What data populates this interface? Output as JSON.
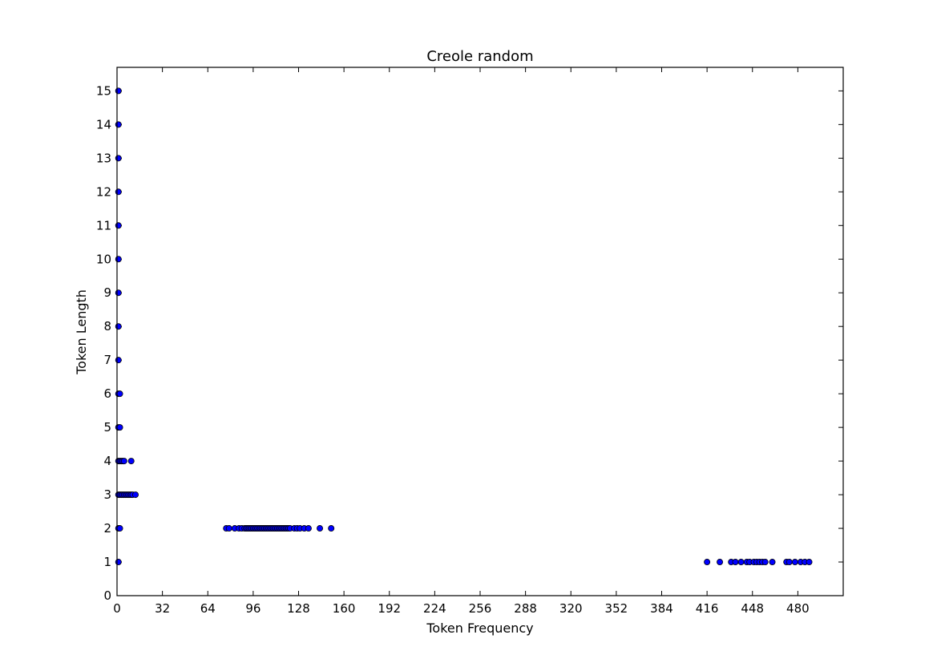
{
  "chart_data": {
    "type": "scatter",
    "title": "Creole random",
    "xlabel": "Token Frequency",
    "ylabel": "Token Length",
    "xlim": [
      0,
      512
    ],
    "ylim": [
      0,
      15.7
    ],
    "xticks": [
      0,
      32,
      64,
      96,
      128,
      160,
      192,
      224,
      256,
      288,
      320,
      352,
      384,
      416,
      448,
      480
    ],
    "yticks": [
      0,
      1,
      2,
      3,
      4,
      5,
      6,
      7,
      8,
      9,
      10,
      11,
      12,
      13,
      14,
      15
    ],
    "grid": false,
    "marker_color": "#0000ff",
    "points": [
      {
        "x": 1,
        "y": 15
      },
      {
        "x": 1,
        "y": 14
      },
      {
        "x": 1,
        "y": 13
      },
      {
        "x": 1,
        "y": 12
      },
      {
        "x": 1,
        "y": 11
      },
      {
        "x": 1,
        "y": 10
      },
      {
        "x": 1,
        "y": 9
      },
      {
        "x": 1,
        "y": 8
      },
      {
        "x": 1,
        "y": 7
      },
      {
        "x": 1,
        "y": 6
      },
      {
        "x": 2,
        "y": 6
      },
      {
        "x": 1,
        "y": 5
      },
      {
        "x": 2,
        "y": 5
      },
      {
        "x": 1,
        "y": 4
      },
      {
        "x": 2,
        "y": 4
      },
      {
        "x": 3,
        "y": 4
      },
      {
        "x": 4,
        "y": 4
      },
      {
        "x": 5,
        "y": 4
      },
      {
        "x": 10,
        "y": 4
      },
      {
        "x": 1,
        "y": 3
      },
      {
        "x": 2,
        "y": 3
      },
      {
        "x": 3,
        "y": 3
      },
      {
        "x": 4,
        "y": 3
      },
      {
        "x": 5,
        "y": 3
      },
      {
        "x": 6,
        "y": 3
      },
      {
        "x": 7,
        "y": 3
      },
      {
        "x": 8,
        "y": 3
      },
      {
        "x": 9,
        "y": 3
      },
      {
        "x": 10,
        "y": 3
      },
      {
        "x": 11,
        "y": 3
      },
      {
        "x": 13,
        "y": 3
      },
      {
        "x": 1,
        "y": 2
      },
      {
        "x": 2,
        "y": 2
      },
      {
        "x": 77,
        "y": 2
      },
      {
        "x": 79,
        "y": 2
      },
      {
        "x": 83,
        "y": 2
      },
      {
        "x": 86,
        "y": 2
      },
      {
        "x": 88,
        "y": 2
      },
      {
        "x": 90,
        "y": 2
      },
      {
        "x": 91,
        "y": 2
      },
      {
        "x": 92,
        "y": 2
      },
      {
        "x": 93,
        "y": 2
      },
      {
        "x": 94,
        "y": 2
      },
      {
        "x": 95,
        "y": 2
      },
      {
        "x": 96,
        "y": 2
      },
      {
        "x": 97,
        "y": 2
      },
      {
        "x": 98,
        "y": 2
      },
      {
        "x": 99,
        "y": 2
      },
      {
        "x": 100,
        "y": 2
      },
      {
        "x": 101,
        "y": 2
      },
      {
        "x": 102,
        "y": 2
      },
      {
        "x": 103,
        "y": 2
      },
      {
        "x": 104,
        "y": 2
      },
      {
        "x": 105,
        "y": 2
      },
      {
        "x": 106,
        "y": 2
      },
      {
        "x": 107,
        "y": 2
      },
      {
        "x": 108,
        "y": 2
      },
      {
        "x": 109,
        "y": 2
      },
      {
        "x": 110,
        "y": 2
      },
      {
        "x": 111,
        "y": 2
      },
      {
        "x": 112,
        "y": 2
      },
      {
        "x": 113,
        "y": 2
      },
      {
        "x": 114,
        "y": 2
      },
      {
        "x": 115,
        "y": 2
      },
      {
        "x": 116,
        "y": 2
      },
      {
        "x": 117,
        "y": 2
      },
      {
        "x": 118,
        "y": 2
      },
      {
        "x": 119,
        "y": 2
      },
      {
        "x": 120,
        "y": 2
      },
      {
        "x": 121,
        "y": 2
      },
      {
        "x": 122,
        "y": 2
      },
      {
        "x": 125,
        "y": 2
      },
      {
        "x": 127,
        "y": 2
      },
      {
        "x": 129,
        "y": 2
      },
      {
        "x": 132,
        "y": 2
      },
      {
        "x": 135,
        "y": 2
      },
      {
        "x": 143,
        "y": 2
      },
      {
        "x": 151,
        "y": 2
      },
      {
        "x": 1,
        "y": 1
      },
      {
        "x": 416,
        "y": 1
      },
      {
        "x": 425,
        "y": 1
      },
      {
        "x": 433,
        "y": 1
      },
      {
        "x": 436,
        "y": 1
      },
      {
        "x": 440,
        "y": 1
      },
      {
        "x": 444,
        "y": 1
      },
      {
        "x": 446,
        "y": 1
      },
      {
        "x": 449,
        "y": 1
      },
      {
        "x": 451,
        "y": 1
      },
      {
        "x": 453,
        "y": 1
      },
      {
        "x": 455,
        "y": 1
      },
      {
        "x": 457,
        "y": 1
      },
      {
        "x": 462,
        "y": 1
      },
      {
        "x": 472,
        "y": 1
      },
      {
        "x": 474,
        "y": 1
      },
      {
        "x": 478,
        "y": 1
      },
      {
        "x": 482,
        "y": 1
      },
      {
        "x": 485,
        "y": 1
      },
      {
        "x": 488,
        "y": 1
      }
    ]
  }
}
